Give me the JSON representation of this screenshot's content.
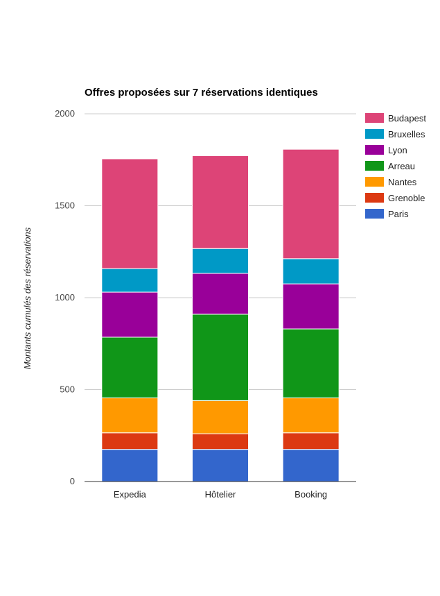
{
  "chart_data": {
    "type": "bar",
    "stacked": true,
    "title": "Offres proposées sur 7 réservations identiques",
    "xlabel": "",
    "ylabel": "Montants cumulés des réservations",
    "ylim": [
      0,
      2000
    ],
    "yticks": [
      0,
      500,
      1000,
      1500,
      2000
    ],
    "grid": true,
    "legend_position": "right",
    "categories": [
      "Expedia",
      "Hôtelier",
      "Booking"
    ],
    "series": [
      {
        "name": "Paris",
        "color": "#3366cc",
        "values": [
          175,
          175,
          175
        ]
      },
      {
        "name": "Grenoble",
        "color": "#dc3912",
        "values": [
          90,
          85,
          90
        ]
      },
      {
        "name": "Nantes",
        "color": "#ff9900",
        "values": [
          190,
          180,
          190
        ]
      },
      {
        "name": "Arreau",
        "color": "#109618",
        "values": [
          330,
          470,
          375
        ]
      },
      {
        "name": "Lyon",
        "color": "#990099",
        "values": [
          245,
          222,
          245
        ]
      },
      {
        "name": "Bruxelles",
        "color": "#0099c6",
        "values": [
          128,
          135,
          137
        ]
      },
      {
        "name": "Budapest",
        "color": "#dd4477",
        "values": [
          597,
          505,
          595
        ]
      }
    ]
  }
}
